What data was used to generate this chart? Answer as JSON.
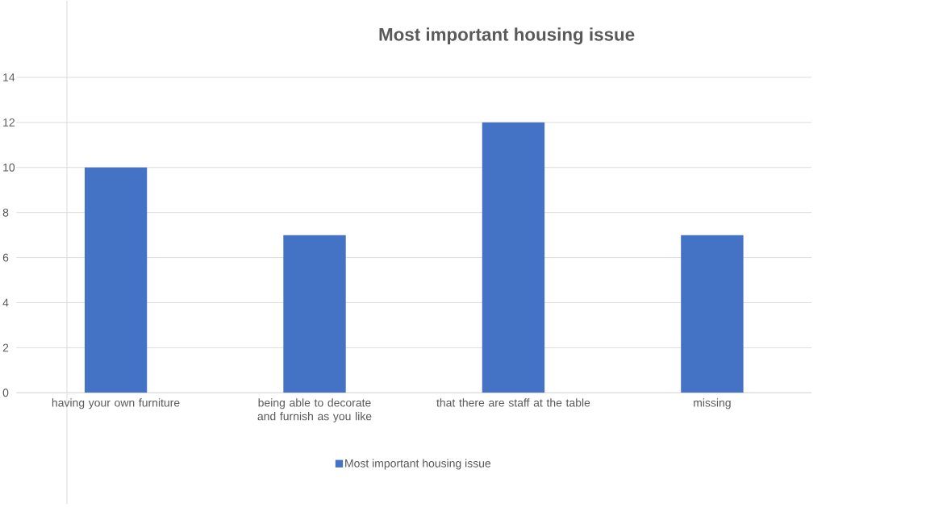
{
  "chart_data": {
    "type": "bar",
    "title": "Most important housing issue",
    "categories": [
      "having your own furniture",
      "being able to decorate and furnish as you like",
      "that there are staff at the table",
      "missing"
    ],
    "series": [
      {
        "name": "Most important housing issue",
        "color": "#4472c4",
        "values": [
          10,
          7,
          12,
          7
        ]
      }
    ],
    "ylim": [
      0,
      14
    ],
    "yticks": [
      0,
      2,
      4,
      6,
      8,
      10,
      12,
      14
    ],
    "grid": "y",
    "legend": "bottom"
  }
}
